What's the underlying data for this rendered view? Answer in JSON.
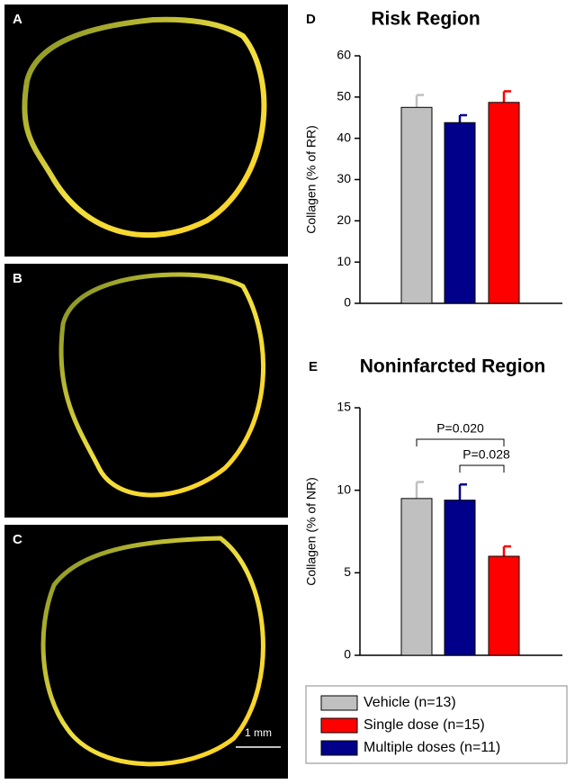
{
  "images": {
    "labels": [
      "A",
      "B",
      "C"
    ],
    "scale_bar": "1 mm"
  },
  "chart_data": [
    {
      "type": "bar",
      "panel": "D",
      "title": "Risk Region",
      "y_label": "Collagen (% of RR)",
      "ylim": [
        0,
        60
      ],
      "yticks": [
        0,
        10,
        20,
        30,
        40,
        50,
        60
      ],
      "series": [
        {
          "name": "Vehicle (n=13)",
          "color": "#c0c0c0",
          "values": [
            47.5
          ],
          "errors": [
            3.0
          ]
        },
        {
          "name": "Multiple doses (n=11)",
          "color": "#00008b",
          "values": [
            43.8
          ],
          "errors": [
            1.8
          ]
        },
        {
          "name": "Single dose (n=15)",
          "color": "#ff0000",
          "values": [
            48.7
          ],
          "errors": [
            2.7
          ]
        }
      ]
    },
    {
      "type": "bar",
      "panel": "E",
      "title": "Noninfarcted Region",
      "y_label": "Collagen (% of NR)",
      "ylim": [
        0,
        15
      ],
      "yticks": [
        0,
        5,
        10,
        15
      ],
      "annotations": [
        "P=0.020",
        "P=0.028"
      ],
      "series": [
        {
          "name": "Vehicle (n=13)",
          "color": "#c0c0c0",
          "values": [
            9.5
          ],
          "errors": [
            1.0
          ]
        },
        {
          "name": "Multiple doses (n=11)",
          "color": "#00008b",
          "values": [
            9.4
          ],
          "errors": [
            0.95
          ]
        },
        {
          "name": "Single dose (n=15)",
          "color": "#ff0000",
          "values": [
            6.0
          ],
          "errors": [
            0.6
          ]
        }
      ]
    }
  ]
}
